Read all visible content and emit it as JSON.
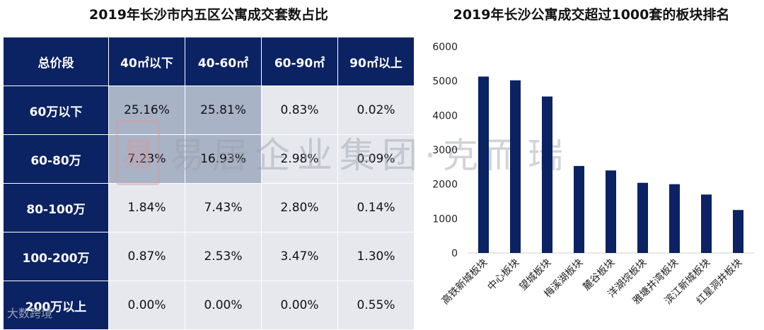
{
  "left_title": "2019年长沙市内五区公寓成交套数占比",
  "right_title": "2019年长沙公寓成交超过1000套的板块排名",
  "watermark": {
    "seal": "易",
    "text": "易居企业集团·克而瑞",
    "secondary": "大数跨境"
  },
  "colors": {
    "header_bg": "#0b2263",
    "cell_bg": "#e6e8ee",
    "highlight_bg": "#a9b3c6",
    "bar": "#0b2263"
  },
  "table": {
    "corner": "总价段",
    "columns": [
      "40㎡以下",
      "40-60㎡",
      "60-90㎡",
      "90㎡以上"
    ],
    "rows": [
      {
        "label": "60万以下",
        "values": [
          "25.16%",
          "25.81%",
          "0.83%",
          "0.02%"
        ]
      },
      {
        "label": "60-80万",
        "values": [
          "7.23%",
          "16.93%",
          "2.98%",
          "0.09%"
        ]
      },
      {
        "label": "80-100万",
        "values": [
          "1.84%",
          "7.43%",
          "2.80%",
          "0.14%"
        ]
      },
      {
        "label": "100-200万",
        "values": [
          "0.87%",
          "2.53%",
          "3.47%",
          "1.30%"
        ]
      },
      {
        "label": "200万以上",
        "values": [
          "0.00%",
          "0.00%",
          "0.00%",
          "0.55%"
        ]
      }
    ]
  },
  "chart_data": [
    {
      "type": "table",
      "title": "2019年长沙市内五区公寓成交套数占比",
      "columns": [
        "总价段",
        "40㎡以下",
        "40-60㎡",
        "60-90㎡",
        "90㎡以上"
      ],
      "rows": [
        [
          "60万以下",
          25.16,
          25.81,
          0.83,
          0.02
        ],
        [
          "60-80万",
          7.23,
          16.93,
          2.98,
          0.09
        ],
        [
          "80-100万",
          1.84,
          7.43,
          2.8,
          0.14
        ],
        [
          "100-200万",
          0.87,
          2.53,
          3.47,
          1.3
        ],
        [
          "200万以上",
          0.0,
          0.0,
          0.0,
          0.55
        ]
      ],
      "highlighted_cells": [
        [
          0,
          0
        ],
        [
          0,
          1
        ],
        [
          1,
          0
        ],
        [
          1,
          1
        ]
      ]
    },
    {
      "type": "bar",
      "title": "2019年长沙公寓成交超过1000套的板块排名",
      "categories": [
        "高铁新城板块",
        "中心板块",
        "望城板块",
        "梅溪湖板块",
        "麓谷板块",
        "洋湖垸板块",
        "雅塘井湾板块",
        "滨江新城板块",
        "红星洞井板块"
      ],
      "values": [
        5130,
        5020,
        4550,
        2530,
        2400,
        2040,
        2000,
        1700,
        1250
      ],
      "ylim": [
        0,
        6000
      ],
      "yticks": [
        0,
        1000,
        2000,
        3000,
        4000,
        5000,
        6000
      ],
      "ytick_labels": [
        "0",
        "1000",
        "2000",
        "3000",
        "4000",
        "5000",
        "6000"
      ],
      "grid": false,
      "legend": "none"
    }
  ]
}
